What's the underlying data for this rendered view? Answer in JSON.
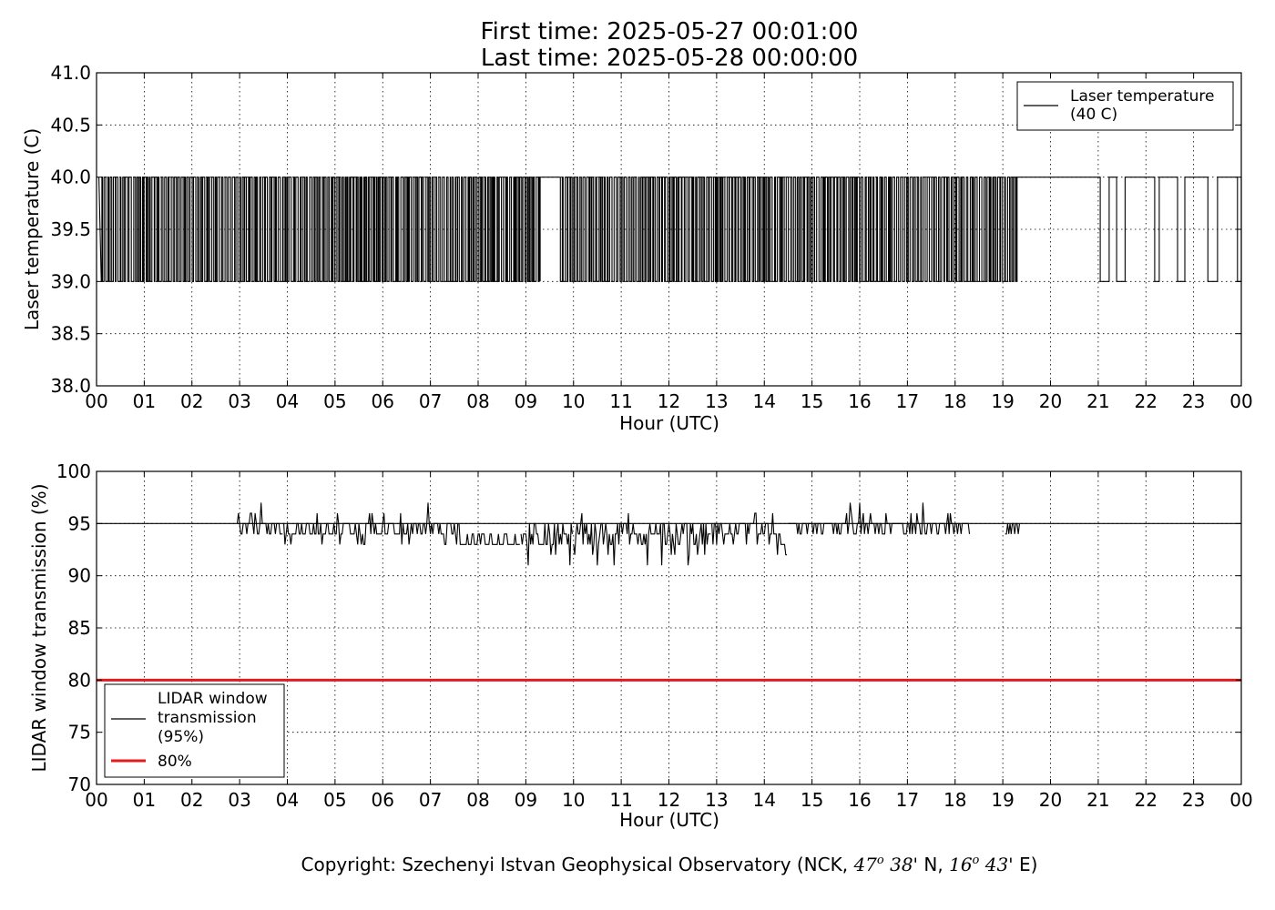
{
  "figure": {
    "title_line1": "First time: 2025-05-27 00:01:00",
    "title_line2": "Last time: 2025-05-28 00:00:00",
    "copyright_prefix": "Copyright: Szechenyi Istvan Geophysical Observatory (NCK, ",
    "lat_deg": "47",
    "lat_sup": "o",
    "lat_min": " 38'",
    "lat_hemi": " N, ",
    "lon_deg": "16",
    "lon_sup": "o",
    "lon_min": " 43'",
    "lon_hemi": " E)"
  },
  "chart_data": [
    {
      "type": "line",
      "ylabel": "Laser temperature (C)",
      "xlabel": "Hour (UTC)",
      "xlim": [
        0,
        24
      ],
      "ylim": [
        38.0,
        41.0
      ],
      "xticks": [
        "00",
        "01",
        "02",
        "03",
        "04",
        "05",
        "06",
        "07",
        "08",
        "09",
        "10",
        "11",
        "12",
        "13",
        "14",
        "15",
        "16",
        "17",
        "18",
        "19",
        "20",
        "21",
        "22",
        "23",
        "00"
      ],
      "yticks": [
        "38.0",
        "38.5",
        "39.0",
        "39.5",
        "40.0",
        "40.5",
        "41.0"
      ],
      "grid": true,
      "legend_position": "top-right",
      "series": [
        {
          "name": "Laser temperature\n(40 C)",
          "legend_lines": [
            "Laser temperature",
            "(40 C)"
          ],
          "color": "#000000",
          "levels": [
            39.0,
            40.0
          ],
          "note_toggle_segments": [
            {
              "from": 0.0,
              "to": 9.3,
              "density": "dense"
            },
            {
              "from": 9.3,
              "to": 9.7,
              "value": 40.0
            },
            {
              "from": 9.7,
              "to": 19.3,
              "density": "dense"
            },
            {
              "from": 19.3,
              "to": 20.6,
              "value": 40.0
            },
            {
              "from": 20.6,
              "to": 24.0,
              "density": "sparse"
            }
          ]
        }
      ]
    },
    {
      "type": "line",
      "ylabel": "LIDAR window transmission (%)",
      "xlabel": "Hour (UTC)",
      "xlim": [
        0,
        24
      ],
      "ylim": [
        70,
        100
      ],
      "xticks": [
        "00",
        "01",
        "02",
        "03",
        "04",
        "05",
        "06",
        "07",
        "08",
        "09",
        "10",
        "11",
        "12",
        "13",
        "14",
        "15",
        "16",
        "17",
        "18",
        "19",
        "20",
        "21",
        "22",
        "23",
        "00"
      ],
      "yticks": [
        "70",
        "75",
        "80",
        "85",
        "90",
        "95",
        "100"
      ],
      "grid": true,
      "legend_position": "bottom-left",
      "series": [
        {
          "name": "LIDAR window\ntransmission\n(95%)",
          "legend_lines": [
            "LIDAR window",
            "transmission",
            "(95%)"
          ],
          "color": "#000000",
          "baseline": 95,
          "segments": [
            {
              "from": 2.95,
              "to": 3.9,
              "amplitude": 1
            },
            {
              "from": 3.9,
              "to": 7.6,
              "amplitude": 1.5
            },
            {
              "from": 7.6,
              "to": 8.9,
              "amplitude": 1.5
            },
            {
              "from": 8.9,
              "to": 10.0,
              "amplitude": 3
            },
            {
              "from": 10.0,
              "to": 12.9,
              "amplitude": 3
            },
            {
              "from": 12.9,
              "to": 14.5,
              "amplitude": 2
            },
            {
              "from": 14.5,
              "to": 18.3,
              "amplitude": 1
            },
            {
              "from": 19.05,
              "to": 19.35,
              "amplitude": 1
            }
          ],
          "min_value": 90
        },
        {
          "name": "80%",
          "legend_lines": [
            "80%"
          ],
          "color": "#e41a1c",
          "constant": 80
        }
      ]
    }
  ]
}
